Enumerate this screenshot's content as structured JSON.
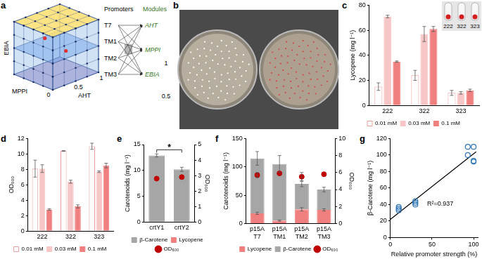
{
  "panel_a": {
    "panel": "a",
    "cube": {
      "axes": [
        {
          "name": "EBIA",
          "ticks": [
            0.5,
            1
          ]
        },
        {
          "name": "MPPI",
          "ticks": [
            0
          ]
        },
        {
          "name": "AHT",
          "ticks": [
            0.5,
            1
          ]
        }
      ]
    },
    "promoters": {
      "title": "Promoters",
      "items": [
        "T7",
        "TM1",
        "TM2",
        "TM3"
      ]
    },
    "modules": {
      "title": "Modules",
      "items": [
        "AHT",
        "MPPI",
        "EBIA"
      ]
    }
  },
  "panel_b": {
    "panel": "b"
  },
  "panel_c_inset": {
    "labels": [
      "222",
      "322",
      "323"
    ]
  },
  "chart_data": [
    {
      "panel": "c",
      "type": "bar",
      "categories": [
        "222",
        "322",
        "323"
      ],
      "ylabel": "Lycopene (mg l⁻¹)",
      "ylim": [
        0,
        80
      ],
      "yticks": [
        0,
        20,
        40,
        60,
        80
      ],
      "grid": false,
      "legend": "bottom",
      "series": [
        {
          "name": "0.01 mM",
          "color": "#ffffff",
          "values": [
            15,
            24,
            10
          ],
          "errors": [
            3,
            4,
            2
          ]
        },
        {
          "name": "0.03 mM",
          "color": "#f7c6c6",
          "values": [
            71,
            57,
            10
          ],
          "errors": [
            1,
            6,
            1
          ]
        },
        {
          "name": "0.1 mM",
          "color": "#f08080",
          "values": [
            35,
            61,
            12
          ],
          "errors": [
            0.5,
            2,
            1
          ]
        }
      ]
    },
    {
      "panel": "d",
      "type": "bar",
      "categories": [
        "222",
        "322",
        "323"
      ],
      "ylabel": "OD₆₀₀",
      "ylim": [
        0,
        12
      ],
      "yticks": [
        0,
        2,
        4,
        6,
        8,
        10,
        12
      ],
      "grid": false,
      "legend": "bottom",
      "series": [
        {
          "name": "0.01 mM",
          "color": "#ffffff",
          "values": [
            8.1,
            10.4,
            11.0
          ],
          "errors": [
            1.1,
            0.05,
            0.4
          ]
        },
        {
          "name": "0.03 mM",
          "color": "#f7c6c6",
          "values": [
            8.1,
            6.4,
            7.7
          ],
          "errors": [
            0.5,
            0.2,
            0.1
          ]
        },
        {
          "name": "0.1 mM",
          "color": "#f08080",
          "values": [
            2.8,
            3.2,
            8.5
          ],
          "errors": [
            0.1,
            0.2,
            0.3
          ]
        }
      ]
    },
    {
      "panel": "e",
      "type": "bar",
      "stacked": true,
      "categories": [
        "crtY1",
        "crtY2"
      ],
      "ylabel": "Carotenoids (mg l⁻¹)",
      "ylim": [
        0,
        15
      ],
      "yticks": [
        0,
        5,
        10,
        15
      ],
      "y2label": "OD₆₀₀",
      "y2lim": [
        0,
        5
      ],
      "y2ticks": [
        0,
        1,
        2,
        3,
        4,
        5
      ],
      "grid": false,
      "legend": "bottom",
      "series": [
        {
          "name": "β-Carotene",
          "color": "#a6a6a6",
          "values": [
            12.9,
            10.2
          ],
          "errors": [
            0.3,
            0.4
          ]
        },
        {
          "name": "Lycopene",
          "color": "#f08080",
          "values": [
            0,
            0
          ]
        },
        {
          "name": "OD₆₀₀",
          "type": "line",
          "line_style": "none",
          "marker": "circle",
          "color": "#c00000",
          "axis": "y2",
          "values": [
            2.8,
            2.9
          ]
        }
      ],
      "annotations": [
        {
          "text": "*",
          "between": [
            "crtY1",
            "crtY2"
          ]
        }
      ]
    },
    {
      "panel": "f",
      "type": "bar",
      "stacked": true,
      "categories": [
        [
          "p15A",
          "T7"
        ],
        [
          "p15A",
          "TM1"
        ],
        [
          "p15A",
          "TM2"
        ],
        [
          "p15A",
          "TM3"
        ]
      ],
      "ylabel": "Carotenoids (mg l⁻¹)",
      "ylim": [
        0,
        150
      ],
      "yticks": [
        0,
        50,
        100,
        150
      ],
      "y2label": "OD₆₀₀",
      "y2lim": [
        0,
        10
      ],
      "y2ticks": [
        0,
        2,
        4,
        6,
        8,
        10
      ],
      "grid": false,
      "legend": "bottom",
      "series": [
        {
          "name": "Lycopene",
          "color": "#f08080",
          "values": [
            18,
            5,
            25,
            24
          ],
          "errors": [
            2,
            1,
            3,
            2
          ]
        },
        {
          "name": "β-Carotene",
          "color": "#a6a6a6",
          "values": [
            97,
            100,
            45,
            36
          ],
          "errors": [
            12,
            15,
            5,
            4
          ]
        },
        {
          "name": "OD₆₀₀",
          "type": "line",
          "line_style": "none",
          "marker": "circle",
          "color": "#c00000",
          "axis": "y2",
          "values": [
            5.7,
            5.9,
            5.5,
            5.8
          ],
          "errors": [
            0.3,
            0,
            0.5,
            0
          ]
        }
      ]
    },
    {
      "panel": "g",
      "type": "scatter",
      "xlabel": "Relative promoter strength (%)",
      "ylabel": "β-Carotene (mg l⁻¹)",
      "xlim": [
        0,
        105
      ],
      "xticks": [
        0,
        50,
        100
      ],
      "ylim": [
        0,
        120
      ],
      "yticks": [
        0,
        20,
        40,
        60,
        80,
        100,
        120
      ],
      "grid": false,
      "color": "#2e75b6",
      "marker": "circle_open",
      "x": [
        10,
        10,
        10,
        30,
        30,
        30,
        93,
        93,
        100,
        100,
        100
      ],
      "values": [
        33,
        35,
        37,
        40,
        42,
        44,
        100,
        110,
        92,
        93,
        110
      ],
      "trendline": {
        "x": [
          0,
          103
        ],
        "values": [
          22,
          104
        ]
      },
      "annotations": [
        {
          "text": "R²=0.937"
        }
      ]
    }
  ]
}
